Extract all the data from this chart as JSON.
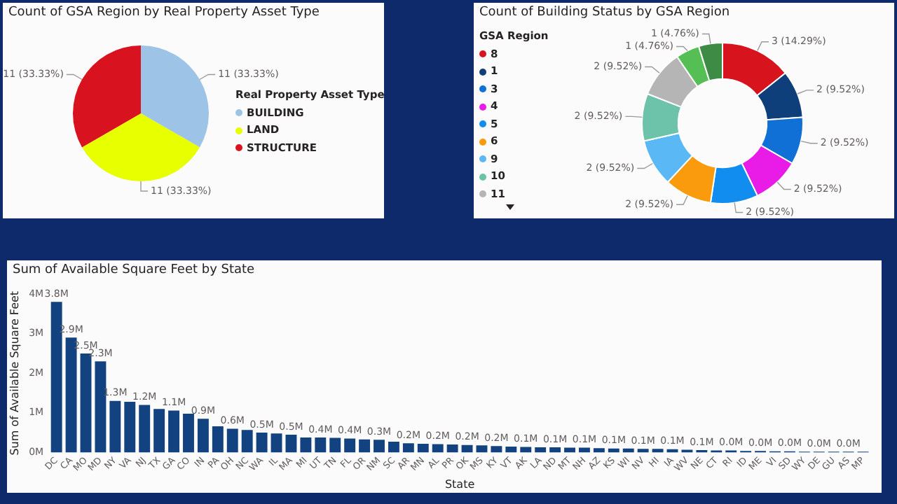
{
  "chart_data": [
    {
      "type": "pie",
      "title": "Count of GSA Region by Real Property Asset Type",
      "legend_title": "Real Property Asset Type",
      "legend": "right",
      "categories": [
        "BUILDING",
        "LAND",
        "STRUCTURE"
      ],
      "values": [
        11,
        11,
        11
      ],
      "colors": [
        "#9dc3e6",
        "#e8ff00",
        "#d9121f"
      ],
      "value_labels": [
        "11 (33.33%)",
        "11 (33.33%)",
        "11 (33.33%)"
      ]
    },
    {
      "type": "donut",
      "title": "Count of Building Status by GSA Region",
      "legend_title": "GSA Region",
      "legend": "left",
      "categories": [
        "8",
        "1",
        "3",
        "4",
        "5",
        "6",
        "9",
        "10",
        "11",
        null,
        null
      ],
      "values": [
        3,
        2,
        2,
        2,
        2,
        2,
        2,
        2,
        2,
        1,
        1
      ],
      "colors": [
        "#d7141e",
        "#0e3f7a",
        "#1170d6",
        "#e81ce6",
        "#118df0",
        "#fa9a0d",
        "#5ab8f5",
        "#6cc3a9",
        "#b5b5b5",
        "#55bf55",
        "#3d8b45"
      ],
      "value_labels": [
        "3 (14.29%)",
        "2 (9.52%)",
        "2 (9.52%)",
        "2 (9.52%)",
        "2 (9.52%)",
        "2 (9.52%)",
        "2 (9.52%)",
        "2 (9.52%)",
        "2 (9.52%)",
        "1 (4.76%)",
        "1 (4.76%)"
      ]
    },
    {
      "type": "bar",
      "title": "Sum of Available Square Feet by State",
      "xlabel": "State",
      "ylabel": "Sum of Available Square Feet",
      "color": "#12427f",
      "grid": false,
      "categories": [
        "DC",
        "CA",
        "MO",
        "MD",
        "NY",
        "VA",
        "NJ",
        "TX",
        "GA",
        "CO",
        "IN",
        "PA",
        "OH",
        "NC",
        "WA",
        "IL",
        "MA",
        "MI",
        "UT",
        "TN",
        "FL",
        "OR",
        "NM",
        "SC",
        "AR",
        "MN",
        "AL",
        "PR",
        "OK",
        "MS",
        "KY",
        "VT",
        "AK",
        "LA",
        "ND",
        "MT",
        "NH",
        "AZ",
        "KS",
        "WI",
        "NV",
        "HI",
        "IA",
        "WV",
        "NE",
        "CT",
        "RI",
        "ID",
        "ME",
        "VI",
        "SD",
        "WY",
        "DE",
        "GU",
        "AS",
        "MP"
      ],
      "values": [
        3.8,
        2.9,
        2.5,
        2.3,
        1.3,
        1.28,
        1.2,
        1.1,
        1.06,
        0.98,
        0.85,
        0.66,
        0.6,
        0.57,
        0.5,
        0.48,
        0.45,
        0.38,
        0.38,
        0.37,
        0.35,
        0.33,
        0.32,
        0.27,
        0.23,
        0.22,
        0.21,
        0.2,
        0.19,
        0.18,
        0.16,
        0.15,
        0.14,
        0.13,
        0.13,
        0.12,
        0.12,
        0.11,
        0.1,
        0.1,
        0.09,
        0.09,
        0.08,
        0.07,
        0.06,
        0.05,
        0.05,
        0.04,
        0.04,
        0.03,
        0.03,
        0.02,
        0.02,
        0.02,
        0.02,
        0.02
      ],
      "value_labels": [
        "3.8M",
        "2.9M",
        "2.5M",
        "2.3M",
        "1.3M",
        null,
        "1.2M",
        null,
        "1.1M",
        null,
        "0.9M",
        null,
        "0.6M",
        null,
        "0.5M",
        null,
        "0.5M",
        null,
        "0.4M",
        null,
        "0.4M",
        null,
        "0.3M",
        null,
        "0.2M",
        null,
        "0.2M",
        null,
        "0.2M",
        null,
        "0.2M",
        null,
        "0.1M",
        null,
        "0.1M",
        null,
        "0.1M",
        null,
        "0.1M",
        null,
        "0.1M",
        null,
        "0.1M",
        null,
        "0.1M",
        null,
        "0.0M",
        null,
        "0.0M",
        null,
        "0.0M",
        null,
        "0.0M",
        null,
        "0.0M",
        null
      ],
      "ylim": [
        0,
        4
      ],
      "yticks": [
        {
          "value": 0,
          "label": "0M"
        },
        {
          "value": 1,
          "label": "1M"
        },
        {
          "value": 2,
          "label": "2M"
        },
        {
          "value": 3,
          "label": "3M"
        },
        {
          "value": 4,
          "label": "4M"
        }
      ]
    }
  ]
}
